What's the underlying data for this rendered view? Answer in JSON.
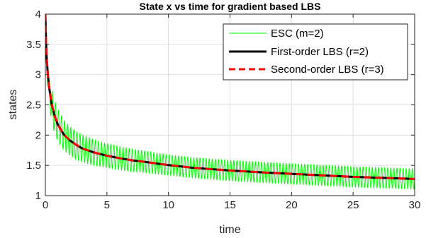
{
  "chart_data": {
    "type": "line",
    "title": "State x vs time for gradient based LBS",
    "xlabel": "time",
    "ylabel": "states",
    "xlim": [
      0,
      30
    ],
    "ylim": [
      1,
      4
    ],
    "xticks": [
      0,
      5,
      10,
      15,
      20,
      25,
      30
    ],
    "yticks": [
      1,
      1.5,
      2,
      2.5,
      3,
      3.5,
      4
    ],
    "xtick_labels": [
      "0",
      "5",
      "10",
      "15",
      "20",
      "25",
      "30"
    ],
    "ytick_labels": [
      "1",
      "1.5",
      "2",
      "2.5",
      "3",
      "3.5",
      "4"
    ],
    "grid": true,
    "legend_position": "top-right",
    "series": [
      {
        "name": "ESC (m=2)",
        "color": "#00ff00",
        "style": "solid",
        "oscillating": true,
        "oscillation_amplitude": [
          [
            0,
            0.05
          ],
          [
            0.5,
            0.28
          ],
          [
            2,
            0.24
          ],
          [
            5,
            0.2
          ],
          [
            10,
            0.17
          ],
          [
            20,
            0.17
          ],
          [
            30,
            0.17
          ]
        ],
        "oscillation_period": 0.25,
        "x": [
          0,
          0.05,
          0.1,
          0.2,
          0.3,
          0.5,
          0.75,
          1,
          1.5,
          2,
          2.5,
          3,
          4,
          5,
          6,
          7,
          8,
          10,
          12,
          15,
          18,
          20,
          22,
          25,
          28,
          30
        ],
        "y": [
          4.0,
          3.5,
          3.25,
          2.95,
          2.75,
          2.5,
          2.3,
          2.17,
          2.0,
          1.9,
          1.83,
          1.78,
          1.71,
          1.66,
          1.62,
          1.585,
          1.56,
          1.505,
          1.46,
          1.415,
          1.38,
          1.36,
          1.34,
          1.31,
          1.29,
          1.275
        ]
      },
      {
        "name": "First-order LBS (r=2)",
        "color": "#000000",
        "style": "solid",
        "x": [
          0,
          0.05,
          0.1,
          0.2,
          0.3,
          0.5,
          0.75,
          1,
          1.5,
          2,
          2.5,
          3,
          4,
          5,
          6,
          7,
          8,
          10,
          12,
          15,
          18,
          20,
          22,
          25,
          28,
          30
        ],
        "y": [
          4.0,
          3.55,
          3.3,
          3.0,
          2.8,
          2.52,
          2.32,
          2.18,
          2.01,
          1.91,
          1.84,
          1.78,
          1.71,
          1.66,
          1.62,
          1.585,
          1.56,
          1.505,
          1.46,
          1.415,
          1.38,
          1.36,
          1.34,
          1.31,
          1.29,
          1.275
        ]
      },
      {
        "name": "Second-order LBS (r=3)",
        "color": "#ff0000",
        "style": "dashed",
        "x": [
          0,
          0.05,
          0.1,
          0.2,
          0.3,
          0.5,
          0.75,
          1,
          1.5,
          2,
          2.5,
          3,
          4,
          5,
          6,
          7,
          8,
          10,
          12,
          15,
          18,
          20,
          22,
          25,
          28,
          30
        ],
        "y": [
          4.0,
          3.55,
          3.3,
          3.0,
          2.8,
          2.52,
          2.32,
          2.18,
          2.01,
          1.91,
          1.84,
          1.78,
          1.71,
          1.66,
          1.62,
          1.585,
          1.56,
          1.505,
          1.46,
          1.415,
          1.38,
          1.36,
          1.34,
          1.31,
          1.29,
          1.275
        ]
      }
    ]
  }
}
